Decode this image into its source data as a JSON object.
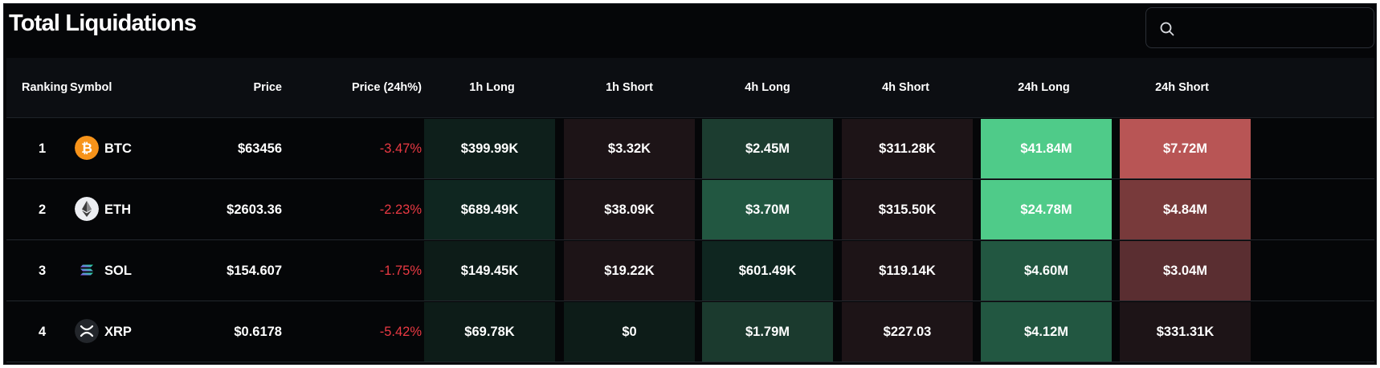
{
  "page": {
    "title": "Total Liquidations"
  },
  "search": {
    "placeholder": "",
    "icon": "search-icon"
  },
  "columns": [
    "Ranking",
    "Symbol",
    "Price",
    "Price (24h%)",
    "1h Long",
    "1h Short",
    "4h Long",
    "4h Short",
    "24h Long",
    "24h Short"
  ],
  "rows": [
    {
      "rank": "1",
      "symbol": "BTC",
      "icon": "bitcoin-icon",
      "price": "$63456",
      "change": "-3.47%",
      "values": [
        "$399.99K",
        "$3.32K",
        "$2.45M",
        "$311.28K",
        "$41.84M",
        "$7.72M"
      ],
      "colors": [
        "#0e1f1b",
        "#1d1417",
        "#1c3d30",
        "#1d1417",
        "#4fcb89",
        "#b85555"
      ]
    },
    {
      "rank": "2",
      "symbol": "ETH",
      "icon": "ethereum-icon",
      "price": "$2603.36",
      "change": "-2.23%",
      "values": [
        "$689.49K",
        "$38.09K",
        "$3.70M",
        "$315.50K",
        "$24.78M",
        "$4.84M"
      ],
      "colors": [
        "#0f2620",
        "#1d1417",
        "#225741",
        "#1d1417",
        "#4fcb89",
        "#783a3b"
      ]
    },
    {
      "rank": "3",
      "symbol": "SOL",
      "icon": "solana-icon",
      "price": "$154.607",
      "change": "-1.75%",
      "values": [
        "$149.45K",
        "$19.22K",
        "$601.49K",
        "$119.14K",
        "$4.60M",
        "$3.04M"
      ],
      "colors": [
        "#0d1c18",
        "#1d1417",
        "#0f2620",
        "#1d1417",
        "#225741",
        "#5a2e31"
      ]
    },
    {
      "rank": "4",
      "symbol": "XRP",
      "icon": "xrp-icon",
      "price": "$0.6178",
      "change": "-5.42%",
      "values": [
        "$69.78K",
        "$0",
        "$1.79M",
        "$227.03",
        "$4.12M",
        "$331.31K"
      ],
      "colors": [
        "#0d1c18",
        "#0d1c18",
        "#1b3a2e",
        "#1d1417",
        "#225741",
        "#1d1417"
      ]
    }
  ],
  "accent": {
    "negative": "#ea3943"
  }
}
